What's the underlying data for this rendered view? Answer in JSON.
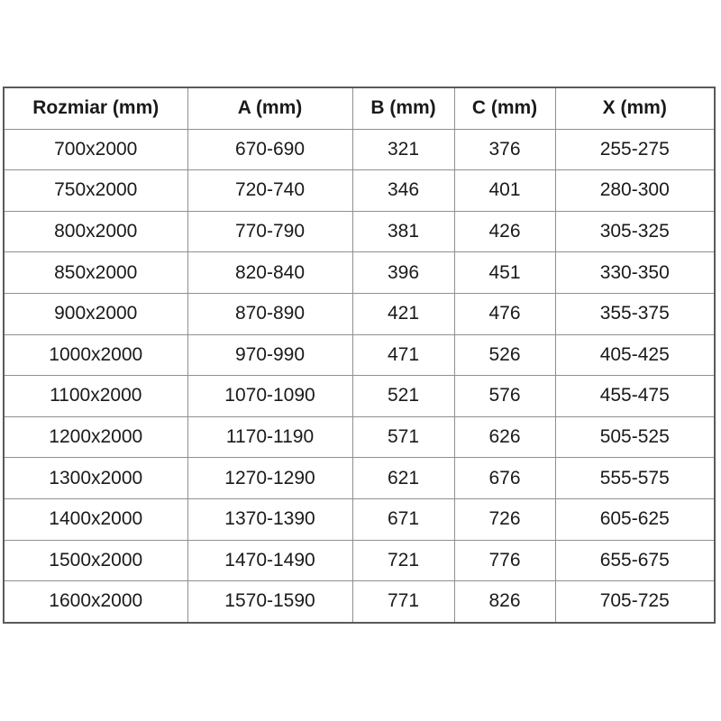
{
  "chart_data": {
    "type": "table",
    "title": "",
    "headers": [
      "Rozmiar (mm)",
      "A (mm)",
      "B (mm)",
      "C (mm)",
      "X (mm)"
    ],
    "rows": [
      [
        "700x2000",
        "670-690",
        "321",
        "376",
        "255-275"
      ],
      [
        "750x2000",
        "720-740",
        "346",
        "401",
        "280-300"
      ],
      [
        "800x2000",
        "770-790",
        "381",
        "426",
        "305-325"
      ],
      [
        "850x2000",
        "820-840",
        "396",
        "451",
        "330-350"
      ],
      [
        "900x2000",
        "870-890",
        "421",
        "476",
        "355-375"
      ],
      [
        "1000x2000",
        "970-990",
        "471",
        "526",
        "405-425"
      ],
      [
        "1100x2000",
        "1070-1090",
        "521",
        "576",
        "455-475"
      ],
      [
        "1200x2000",
        "1170-1190",
        "571",
        "626",
        "505-525"
      ],
      [
        "1300x2000",
        "1270-1290",
        "621",
        "676",
        "555-575"
      ],
      [
        "1400x2000",
        "1370-1390",
        "671",
        "726",
        "605-625"
      ],
      [
        "1500x2000",
        "1470-1490",
        "721",
        "776",
        "655-675"
      ],
      [
        "1600x2000",
        "1570-1590",
        "771",
        "826",
        "705-725"
      ]
    ],
    "layout": {
      "grid": true,
      "header_bold": true,
      "text_align": "center"
    }
  },
  "colors": {
    "background": "#ffffff",
    "grid_line": "#8f8f8f",
    "outer_border": "#5a5a5a",
    "text": "#1a1a1a"
  }
}
